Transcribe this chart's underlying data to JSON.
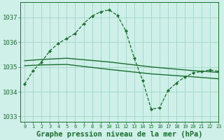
{
  "bg_color": "#cef0e8",
  "grid_color": "#a8d8cc",
  "line_color": "#1a6e2e",
  "title": "Graphe pression niveau de la mer (hPa)",
  "xlim": [
    -0.5,
    23
  ],
  "ylim": [
    1032.8,
    1037.6
  ],
  "yticks": [
    1033,
    1034,
    1035,
    1036,
    1037
  ],
  "xticks": [
    0,
    1,
    2,
    3,
    4,
    5,
    6,
    7,
    8,
    9,
    10,
    11,
    12,
    13,
    14,
    15,
    16,
    17,
    18,
    19,
    20,
    21,
    22,
    23
  ],
  "series1_x": [
    0,
    1,
    2,
    3,
    4,
    5,
    6,
    7,
    8,
    9,
    10,
    11,
    12,
    13,
    14,
    15,
    16,
    17,
    18,
    19,
    20,
    21,
    22,
    23
  ],
  "series1_y": [
    1034.3,
    1034.85,
    1035.2,
    1035.65,
    1035.95,
    1036.15,
    1036.35,
    1036.75,
    1037.05,
    1037.22,
    1037.3,
    1037.08,
    1036.45,
    1035.35,
    1034.45,
    1033.3,
    1033.35,
    1034.05,
    1034.35,
    1034.6,
    1034.75,
    1034.82,
    1034.88,
    1034.82
  ],
  "series2_x": [
    0,
    2,
    5,
    10,
    15,
    20,
    23
  ],
  "series2_y": [
    1035.25,
    1035.3,
    1035.35,
    1035.2,
    1035.0,
    1034.85,
    1034.78
  ],
  "series3_x": [
    0,
    2,
    5,
    10,
    15,
    20,
    23
  ],
  "series3_y": [
    1035.05,
    1035.08,
    1035.1,
    1034.9,
    1034.72,
    1034.6,
    1034.52
  ],
  "title_fontsize": 7.5,
  "tick_fontsize": 6.5
}
